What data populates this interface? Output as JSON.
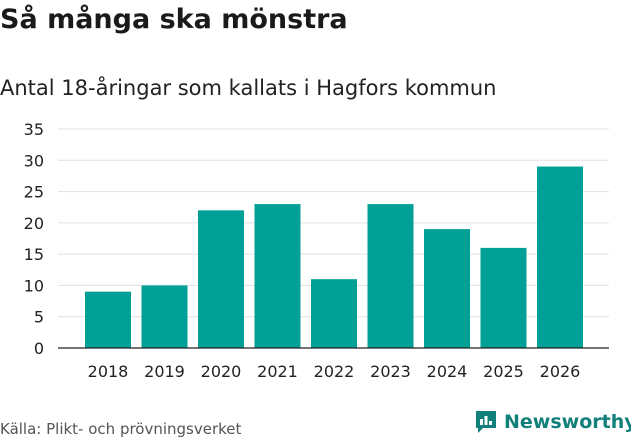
{
  "title": "Så många ska mönstra",
  "subtitle": "Antal 18-åringar som kallats i Hagfors kommun",
  "source": "Källa: Plikt- och prövningsverket",
  "brand": "Newsworthy",
  "colors": {
    "bar": "#00a096",
    "grid": "#e0e0e0",
    "brand": "#12807a"
  },
  "chart_data": {
    "type": "bar",
    "title": "Så många ska mönstra",
    "subtitle": "Antal 18-åringar som kallats i Hagfors kommun",
    "xlabel": "",
    "ylabel": "",
    "categories": [
      "2018",
      "2019",
      "2020",
      "2021",
      "2022",
      "2023",
      "2024",
      "2025",
      "2026"
    ],
    "values": [
      9,
      10,
      22,
      23,
      11,
      23,
      19,
      16,
      29
    ],
    "ylim": [
      0,
      35
    ],
    "yticks": [
      0,
      5,
      10,
      15,
      20,
      25,
      30,
      35
    ],
    "grid": true
  }
}
